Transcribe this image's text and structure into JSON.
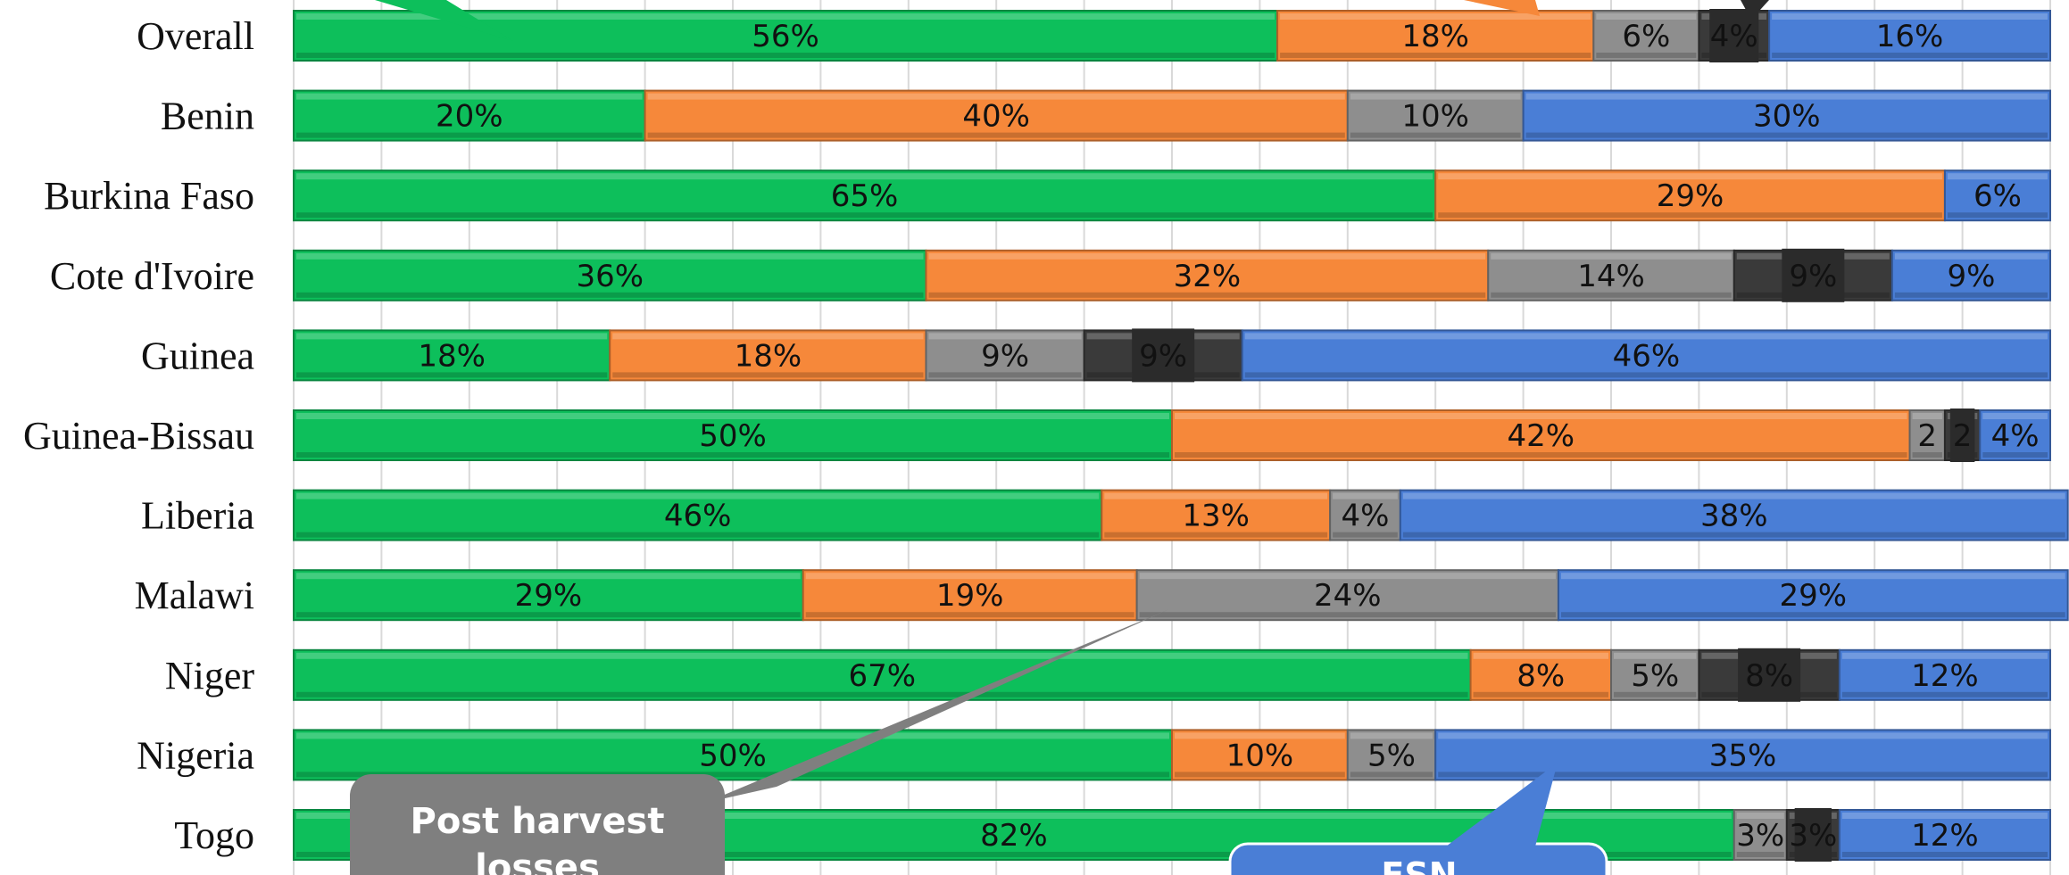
{
  "chart_data": {
    "type": "bar",
    "orientation": "horizontal",
    "stacked": true,
    "percent": true,
    "xlim": [
      0,
      100
    ],
    "grid": true,
    "categories": [
      "Overall",
      "Benin",
      "Burkina Faso",
      "Cote d'Ivoire",
      "Guinea",
      "Guinea-Bissau",
      "Liberia",
      "Malawi",
      "Niger",
      "Nigeria",
      "Togo"
    ],
    "series": [
      {
        "color": "#0dbf5b",
        "values": [
          56,
          20,
          65,
          36,
          18,
          50,
          46,
          29,
          67,
          50,
          82
        ],
        "labels": [
          "56%",
          "20%",
          "65%",
          "36%",
          "18%",
          "50%",
          "46%",
          "29%",
          "67%",
          "50%",
          "82%"
        ]
      },
      {
        "color": "#f6883a",
        "values": [
          18,
          40,
          29,
          32,
          18,
          42,
          13,
          19,
          8,
          10,
          0
        ],
        "labels": [
          "18%",
          "40%",
          "29%",
          "32%",
          "18%",
          "42%",
          "13%",
          "19%",
          "8%",
          "10%",
          ""
        ]
      },
      {
        "color": "#8e8e8e",
        "values": [
          6,
          10,
          0,
          14,
          9,
          2,
          4,
          24,
          5,
          5,
          3
        ],
        "labels": [
          "6%",
          "10%",
          "",
          "14%",
          "9%",
          "2",
          "4%",
          "24%",
          "5%",
          "5%",
          "3%"
        ]
      },
      {
        "color": "#3a3a3a",
        "values": [
          4,
          0,
          0,
          9,
          9,
          2,
          0,
          0,
          8,
          0,
          3
        ],
        "labels": [
          "4%",
          "",
          "",
          "9%",
          "9%",
          "2",
          "",
          "",
          "8%",
          "",
          "3%"
        ]
      },
      {
        "color": "#4a7ed6",
        "values": [
          16,
          30,
          6,
          9,
          46,
          4,
          38,
          29,
          12,
          35,
          12
        ],
        "labels": [
          "16%",
          "30%",
          "6%",
          "9%",
          "46%",
          "4%",
          "38%",
          "29%",
          "12%",
          "35%",
          "12%"
        ]
      }
    ],
    "annotations": [
      {
        "text_lines": [
          "Post harvest",
          "losses"
        ],
        "color": "#7f7f7f"
      },
      {
        "text_lines": [
          "FSN"
        ],
        "color": "#4a7ed6"
      }
    ]
  }
}
